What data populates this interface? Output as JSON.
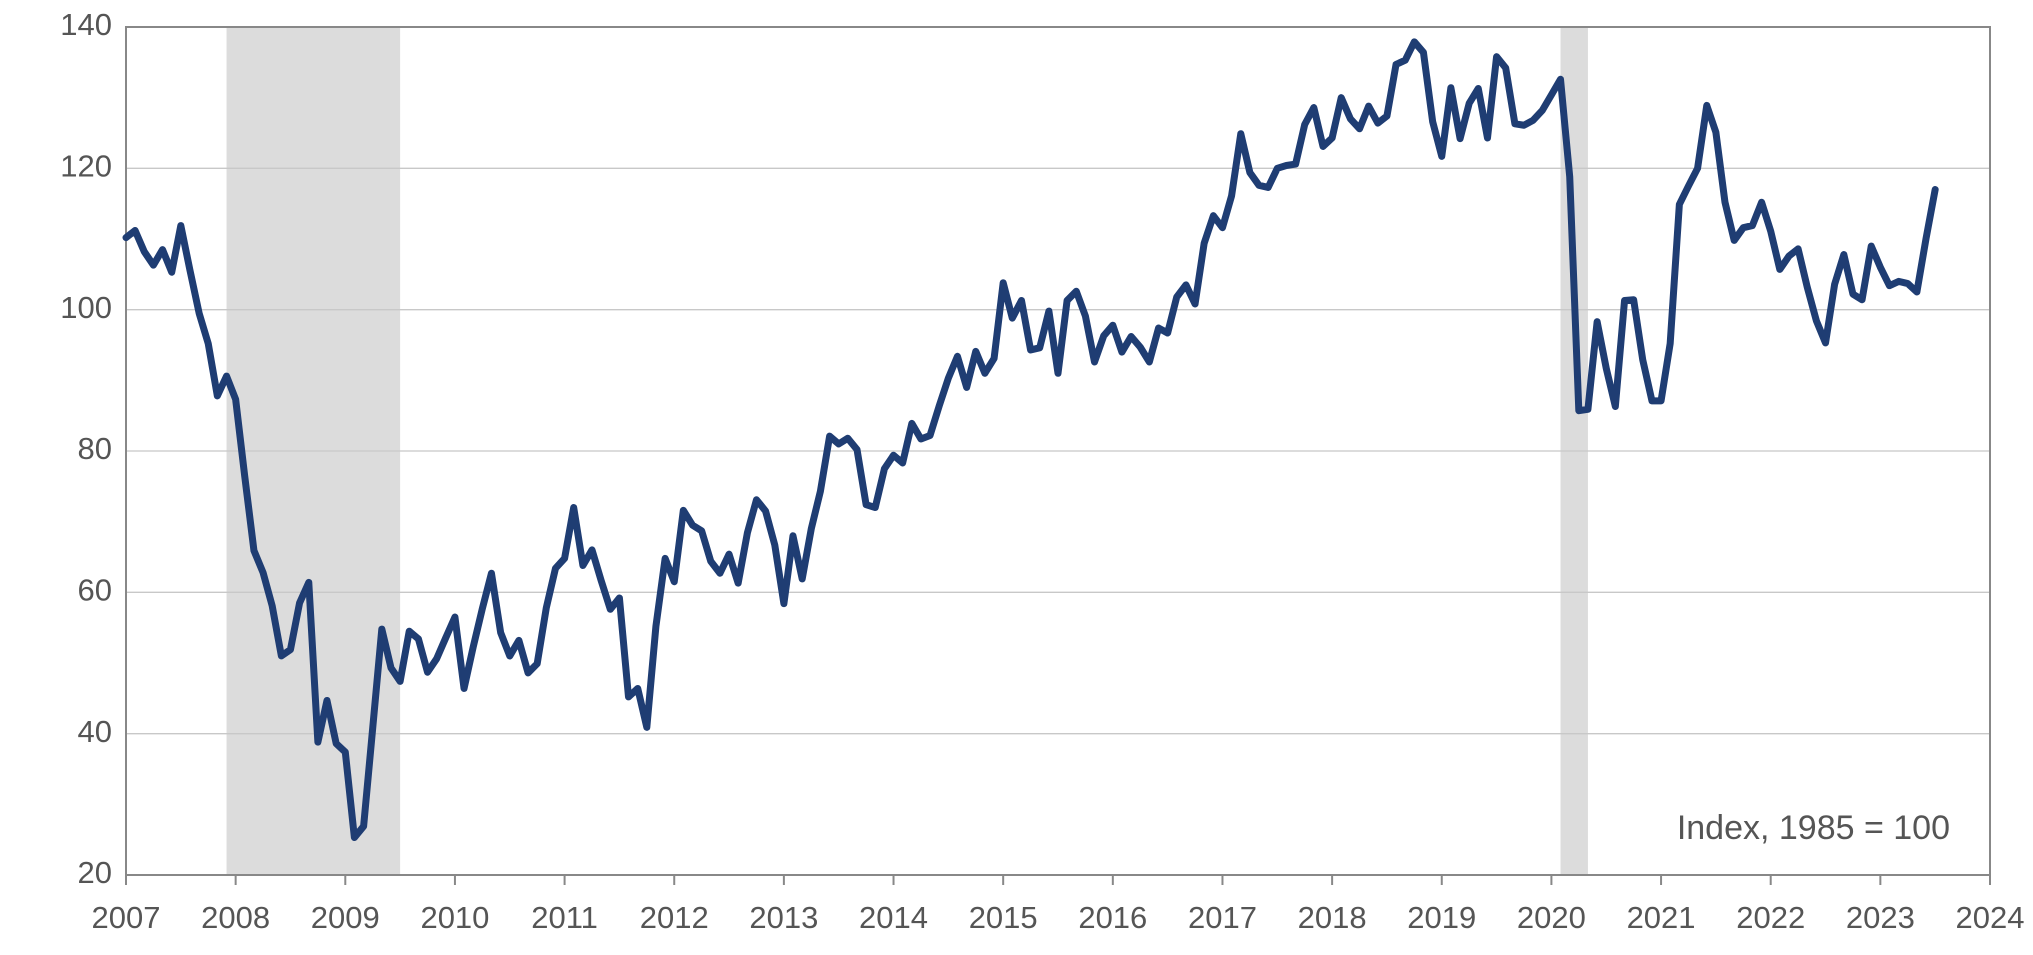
{
  "chart_data": {
    "type": "line",
    "annotation": "Index, 1985 = 100",
    "color": "#1f3d73",
    "band_color": "#dcdcdc",
    "grid": true,
    "xlim": [
      2007,
      2024
    ],
    "xticks": [
      2007,
      2008,
      2009,
      2010,
      2011,
      2012,
      2013,
      2014,
      2015,
      2016,
      2017,
      2018,
      2019,
      2020,
      2021,
      2022,
      2023,
      2024
    ],
    "ylim": [
      20,
      140
    ],
    "yticks": [
      20,
      40,
      60,
      80,
      100,
      120,
      140
    ],
    "shaded_periods": [
      [
        2007.917,
        2009.5
      ],
      [
        2020.083,
        2020.333
      ]
    ],
    "x": [
      2007,
      2007.083,
      2007.167,
      2007.25,
      2007.333,
      2007.417,
      2007.5,
      2007.583,
      2007.667,
      2007.75,
      2007.833,
      2007.917,
      2008,
      2008.083,
      2008.167,
      2008.25,
      2008.333,
      2008.417,
      2008.5,
      2008.583,
      2008.667,
      2008.75,
      2008.833,
      2008.917,
      2009,
      2009.083,
      2009.167,
      2009.25,
      2009.333,
      2009.417,
      2009.5,
      2009.583,
      2009.667,
      2009.75,
      2009.833,
      2009.917,
      2010,
      2010.083,
      2010.167,
      2010.25,
      2010.333,
      2010.417,
      2010.5,
      2010.583,
      2010.667,
      2010.75,
      2010.833,
      2010.917,
      2011,
      2011.083,
      2011.167,
      2011.25,
      2011.333,
      2011.417,
      2011.5,
      2011.583,
      2011.667,
      2011.75,
      2011.833,
      2011.917,
      2012,
      2012.083,
      2012.167,
      2012.25,
      2012.333,
      2012.417,
      2012.5,
      2012.583,
      2012.667,
      2012.75,
      2012.833,
      2012.917,
      2013,
      2013.083,
      2013.167,
      2013.25,
      2013.333,
      2013.417,
      2013.5,
      2013.583,
      2013.667,
      2013.75,
      2013.833,
      2013.917,
      2014,
      2014.083,
      2014.167,
      2014.25,
      2014.333,
      2014.417,
      2014.5,
      2014.583,
      2014.667,
      2014.75,
      2014.833,
      2014.917,
      2015,
      2015.083,
      2015.167,
      2015.25,
      2015.333,
      2015.417,
      2015.5,
      2015.583,
      2015.667,
      2015.75,
      2015.833,
      2015.917,
      2016,
      2016.083,
      2016.167,
      2016.25,
      2016.333,
      2016.417,
      2016.5,
      2016.583,
      2016.667,
      2016.75,
      2016.833,
      2016.917,
      2017,
      2017.083,
      2017.167,
      2017.25,
      2017.333,
      2017.417,
      2017.5,
      2017.583,
      2017.667,
      2017.75,
      2017.833,
      2017.917,
      2018,
      2018.083,
      2018.167,
      2018.25,
      2018.333,
      2018.417,
      2018.5,
      2018.583,
      2018.667,
      2018.75,
      2018.833,
      2018.917,
      2019,
      2019.083,
      2019.167,
      2019.25,
      2019.333,
      2019.417,
      2019.5,
      2019.583,
      2019.667,
      2019.75,
      2019.833,
      2019.917,
      2020,
      2020.083,
      2020.167,
      2020.25,
      2020.333,
      2020.417,
      2020.5,
      2020.583,
      2020.667,
      2020.75,
      2020.833,
      2020.917,
      2021,
      2021.083,
      2021.167,
      2021.25,
      2021.333,
      2021.417,
      2021.5,
      2021.583,
      2021.667,
      2021.75,
      2021.833,
      2021.917,
      2022,
      2022.083,
      2022.167,
      2022.25,
      2022.333,
      2022.417,
      2022.5,
      2022.583,
      2022.667,
      2022.75,
      2022.833,
      2022.917,
      2023,
      2023.083,
      2023.167,
      2023.25,
      2023.333,
      2023.417,
      2023.5
    ],
    "values": [
      110.2,
      111.2,
      108.2,
      106.3,
      108.5,
      105.3,
      111.9,
      105.6,
      99.5,
      95.2,
      87.8,
      90.6,
      87.3,
      76.4,
      65.9,
      62.8,
      58.1,
      51.0,
      51.9,
      58.5,
      61.4,
      38.8,
      44.7,
      38.6,
      37.4,
      25.3,
      26.9,
      40.8,
      54.8,
      49.3,
      47.4,
      54.5,
      53.4,
      48.7,
      50.6,
      53.6,
      56.5,
      46.4,
      52.3,
      57.7,
      62.7,
      54.3,
      51.0,
      53.2,
      48.6,
      49.9,
      57.8,
      63.4,
      64.8,
      72.0,
      63.8,
      66.0,
      61.7,
      57.6,
      59.2,
      45.2,
      46.4,
      40.9,
      55.2,
      64.8,
      61.5,
      71.6,
      69.5,
      68.7,
      64.4,
      62.7,
      65.4,
      61.3,
      68.4,
      73.1,
      71.5,
      66.7,
      58.4,
      68.0,
      61.9,
      69.0,
      74.3,
      82.1,
      81.0,
      81.8,
      80.2,
      72.4,
      72.0,
      77.5,
      79.4,
      78.3,
      83.9,
      81.7,
      82.2,
      86.4,
      90.3,
      93.4,
      89.0,
      94.1,
      91.0,
      93.1,
      103.8,
      98.8,
      101.3,
      94.3,
      94.6,
      99.8,
      91.0,
      101.3,
      102.6,
      99.1,
      92.6,
      96.3,
      97.8,
      94.0,
      96.2,
      94.7,
      92.6,
      97.4,
      96.7,
      101.8,
      103.5,
      100.8,
      109.4,
      113.3,
      111.6,
      116.1,
      124.9,
      119.4,
      117.6,
      117.3,
      120.0,
      120.4,
      120.6,
      126.2,
      128.6,
      123.1,
      124.3,
      130.0,
      127.0,
      125.6,
      128.8,
      126.4,
      127.4,
      134.7,
      135.3,
      137.9,
      136.4,
      126.6,
      121.7,
      131.4,
      124.2,
      129.2,
      131.3,
      124.3,
      135.8,
      134.2,
      126.3,
      126.1,
      126.8,
      128.2,
      130.4,
      132.6,
      118.8,
      85.7,
      85.9,
      98.3,
      91.7,
      86.3,
      101.3,
      101.4,
      92.9,
      87.1,
      87.1,
      95.2,
      114.9,
      117.5,
      120.0,
      128.9,
      125.1,
      115.2,
      109.8,
      111.6,
      111.9,
      115.2,
      111.1,
      105.7,
      107.6,
      108.6,
      103.2,
      98.4,
      95.3,
      103.6,
      107.8,
      102.2,
      101.4,
      109.0,
      106.0,
      103.4,
      104.0,
      103.7,
      102.5,
      110.1,
      117.0
    ]
  }
}
